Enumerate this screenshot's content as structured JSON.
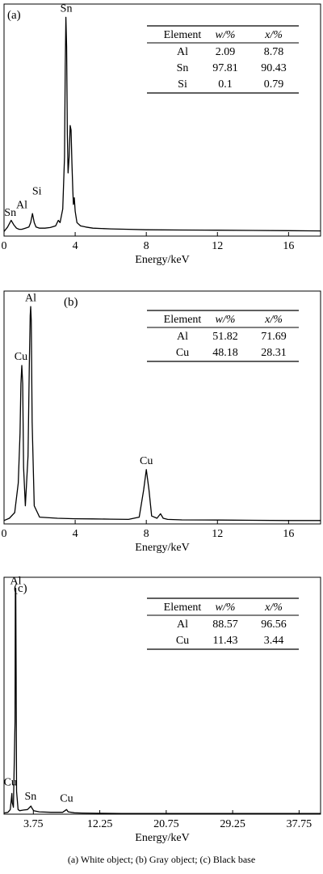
{
  "caption": "(a)  White  object;  (b)  Gray   object; (c) Black base",
  "chart_data": [
    {
      "type": "line",
      "panel_label": "(a)",
      "xlabel": "Energy/keV",
      "ylabel": "",
      "xlim": [
        0,
        17.8
      ],
      "ylim": [
        0,
        100
      ],
      "xticks": [
        0,
        4,
        8,
        12,
        16
      ],
      "xtick_labels": [
        "0",
        "4",
        "8",
        "12",
        "16"
      ],
      "grid": false,
      "spectrum": {
        "x": [
          0.0,
          0.2,
          0.4,
          0.55,
          0.7,
          0.85,
          1.0,
          1.2,
          1.4,
          1.5,
          1.6,
          1.7,
          1.8,
          2.0,
          2.3,
          2.6,
          2.9,
          3.05,
          3.15,
          3.3,
          3.4,
          3.44,
          3.48,
          3.52,
          3.56,
          3.6,
          3.66,
          3.72,
          3.77,
          3.82,
          3.87,
          3.9,
          3.95,
          4.0,
          4.1,
          4.3,
          4.6,
          5.0,
          6.0,
          7.0,
          8.0,
          10.0,
          12.0,
          14.0,
          16.0,
          17.8
        ],
        "y": [
          2.0,
          4.0,
          7.0,
          5.0,
          3.5,
          3.0,
          3.0,
          3.5,
          4.0,
          6.0,
          10.0,
          6.0,
          4.0,
          3.5,
          3.5,
          3.8,
          4.5,
          7.0,
          6.0,
          12.0,
          35.0,
          75.0,
          97.0,
          84.0,
          45.0,
          28.0,
          35.0,
          49.0,
          47.0,
          32.0,
          20.0,
          14.0,
          17.0,
          11.0,
          6.0,
          4.5,
          4.0,
          3.5,
          3.2,
          3.0,
          2.8,
          2.7,
          2.6,
          2.5,
          2.4,
          2.3
        ]
      },
      "peak_labels": [
        {
          "text": "Sn",
          "x": 3.5,
          "y": 98
        },
        {
          "text": "Si",
          "x": 1.85,
          "y": 17
        },
        {
          "text": "Al",
          "x": 1.0,
          "y": 11
        },
        {
          "text": "Sn",
          "x": 0.35,
          "y": 7.5
        }
      ],
      "table": {
        "headers": [
          "Element",
          "w/%",
          "x/%"
        ],
        "rows": [
          [
            "Al",
            "2.09",
            "8.78"
          ],
          [
            "Sn",
            "97.81",
            "90.43"
          ],
          [
            "Si",
            "0.1",
            "0.79"
          ]
        ]
      }
    },
    {
      "type": "line",
      "panel_label": "(b)",
      "xlabel": "Energy/keV",
      "ylabel": "",
      "xlim": [
        0,
        17.8
      ],
      "ylim": [
        0,
        100
      ],
      "xticks": [
        0,
        4,
        8,
        12,
        16
      ],
      "xtick_labels": [
        "0",
        "4",
        "8",
        "12",
        "16"
      ],
      "grid": false,
      "spectrum": {
        "x": [
          0.0,
          0.3,
          0.6,
          0.8,
          0.9,
          0.95,
          1.0,
          1.05,
          1.1,
          1.2,
          1.35,
          1.42,
          1.47,
          1.5,
          1.53,
          1.58,
          1.7,
          2.0,
          3.0,
          4.0,
          5.0,
          6.0,
          7.0,
          7.6,
          7.85,
          8.0,
          8.15,
          8.3,
          8.6,
          8.8,
          8.95,
          9.2,
          10.0,
          12.0,
          14.0,
          16.0,
          17.8
        ],
        "y": [
          1.5,
          2.5,
          5.0,
          18.0,
          40.0,
          62.0,
          70.0,
          62.0,
          25.0,
          8.0,
          30.0,
          70.0,
          92.0,
          96.0,
          90.0,
          45.0,
          8.0,
          3.0,
          2.5,
          2.3,
          2.2,
          2.1,
          2.0,
          3.0,
          15.0,
          24.0,
          15.0,
          3.5,
          2.5,
          4.5,
          2.5,
          2.0,
          1.8,
          1.7,
          1.6,
          1.5,
          1.5
        ]
      },
      "peak_labels": [
        {
          "text": "Al",
          "x": 1.5,
          "y": 97
        },
        {
          "text": "Cu",
          "x": 0.95,
          "y": 71
        },
        {
          "text": "Cu",
          "x": 8.0,
          "y": 25
        }
      ],
      "table": {
        "headers": [
          "Element",
          "w/%",
          "x/%"
        ],
        "rows": [
          [
            "Al",
            "51.82",
            "71.69"
          ],
          [
            "Cu",
            "48.18",
            "28.31"
          ]
        ]
      }
    },
    {
      "type": "line",
      "panel_label": "(c)",
      "xlabel": "Energy/keV",
      "ylabel": "",
      "xlim": [
        0,
        40.5
      ],
      "ylim": [
        0,
        100
      ],
      "xticks": [
        3.75,
        12.25,
        20.75,
        29.25,
        37.75
      ],
      "xtick_labels": [
        "3.75",
        "12.25",
        "20.75",
        "29.25",
        "37.75"
      ],
      "grid": false,
      "spectrum": {
        "x": [
          0.0,
          0.5,
          0.8,
          0.95,
          1.0,
          1.05,
          1.2,
          1.4,
          1.45,
          1.5,
          1.55,
          1.6,
          1.8,
          2.0,
          2.5,
          3.0,
          3.44,
          3.6,
          3.8,
          4.5,
          6.0,
          7.5,
          8.0,
          8.2,
          9.0,
          10.0,
          12.0,
          15.0,
          20.0,
          25.0,
          30.0,
          35.0,
          40.5
        ],
        "y": [
          0.5,
          0.8,
          2.0,
          7.0,
          9.0,
          5.0,
          3.0,
          40.0,
          96.0,
          98.0,
          60.0,
          10.0,
          2.0,
          1.5,
          1.8,
          2.0,
          3.5,
          2.5,
          1.5,
          1.0,
          0.8,
          0.8,
          2.0,
          1.0,
          0.6,
          0.5,
          0.4,
          0.3,
          0.3,
          0.3,
          0.3,
          0.3,
          0.3
        ]
      },
      "peak_labels": [
        {
          "text": "Al",
          "x": 1.5,
          "y": 98.5
        },
        {
          "text": "Cu",
          "x": 0.8,
          "y": 11
        },
        {
          "text": "Sn",
          "x": 3.4,
          "y": 5
        },
        {
          "text": "Cu",
          "x": 8.0,
          "y": 4
        }
      ],
      "table": {
        "headers": [
          "Element",
          "w/%",
          "x/%"
        ],
        "rows": [
          [
            "Al",
            "88.57",
            "96.56"
          ],
          [
            "Cu",
            "11.43",
            "3.44"
          ]
        ]
      }
    }
  ]
}
